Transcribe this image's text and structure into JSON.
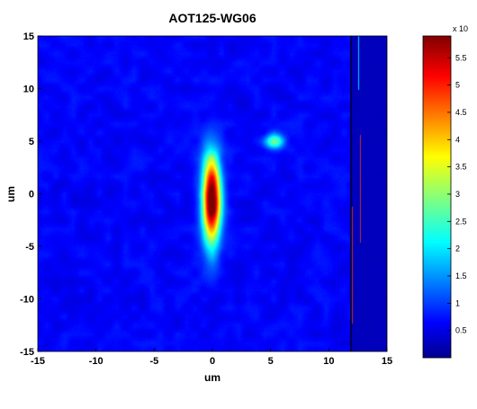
{
  "chart_data": {
    "type": "heatmap",
    "title": "AOT125-WG06",
    "xlabel": "um",
    "ylabel": "um",
    "xlim": [
      -15,
      15
    ],
    "ylim": [
      -15,
      15
    ],
    "x_ticks": [
      "-15",
      "-10",
      "-5",
      "0",
      "5",
      "10",
      "15"
    ],
    "y_ticks": [
      "15",
      "10",
      "5",
      "0",
      "-5",
      "-10",
      "-15"
    ],
    "colorbar": {
      "colormap": "jet",
      "range": [
        0,
        5.9
      ],
      "ticks": [
        "5.5",
        "5",
        "4.5",
        "4",
        "3.5",
        "3",
        "2.5",
        "2",
        "1.5",
        "1",
        "0.5"
      ],
      "multiplier_label": "x 10"
    },
    "features": [
      {
        "name": "main-spot",
        "x": -0.1,
        "y": -0.5,
        "sigma_x": 0.55,
        "sigma_y": 2.9,
        "peak": 5.8
      },
      {
        "name": "side-spot",
        "x": 5.3,
        "y": 5.0,
        "sigma_x": 0.55,
        "sigma_y": 0.5,
        "peak": 2.2
      }
    ],
    "artifact_band": {
      "x_start": 11.8,
      "x_end": 15
    }
  }
}
